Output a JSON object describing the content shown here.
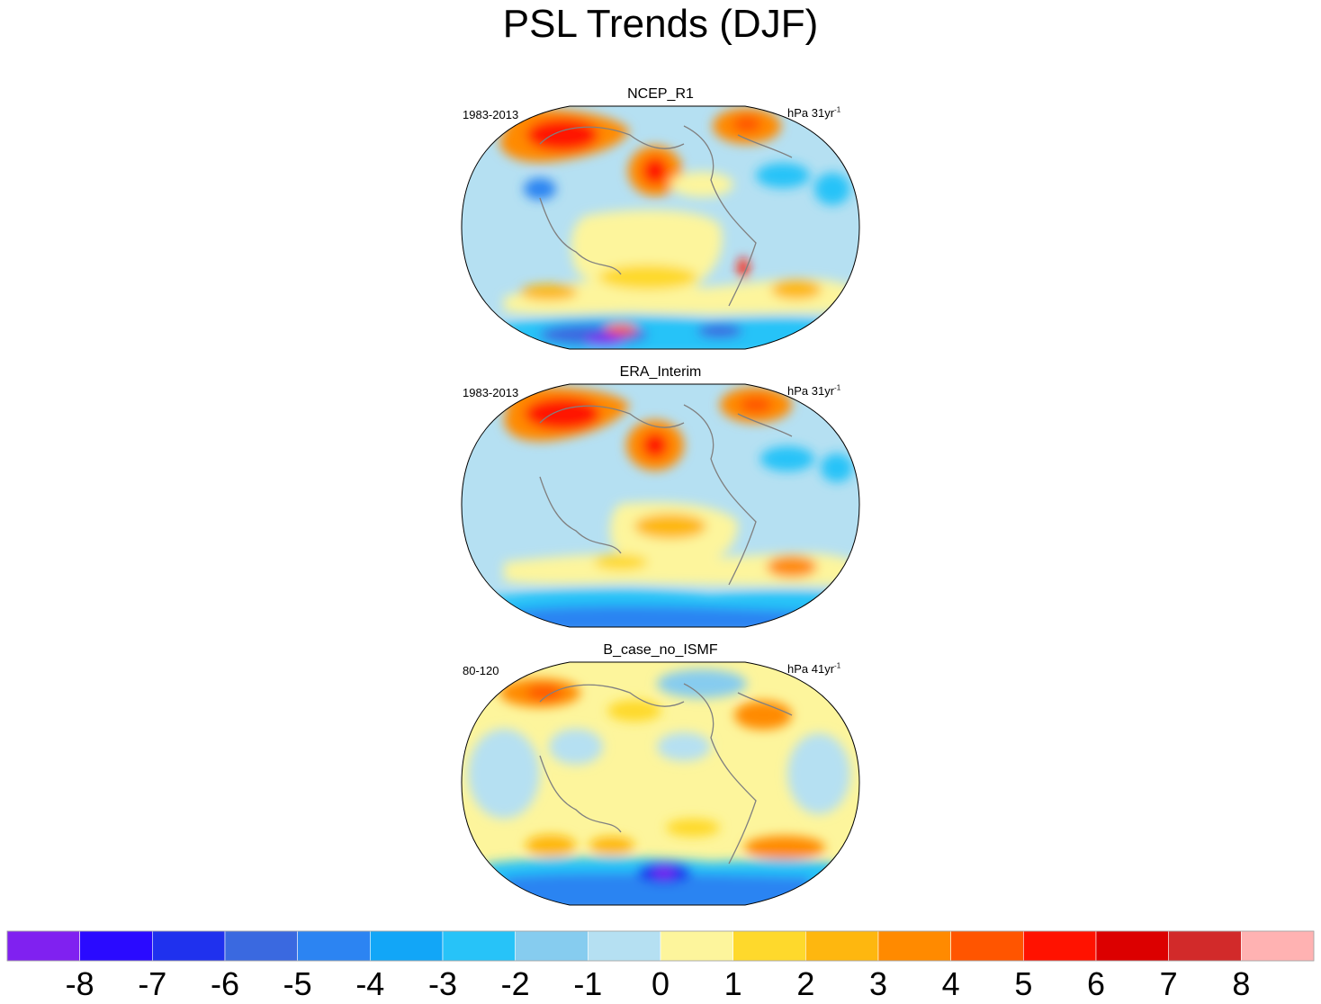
{
  "title": "PSL Trends (DJF)",
  "panels": [
    {
      "title": "NCEP_R1",
      "period": "1983-2013",
      "units_prefix": "hPa 31yr",
      "units_exp": "-1"
    },
    {
      "title": "ERA_Interim",
      "period": "1983-2013",
      "units_prefix": "hPa 31yr",
      "units_exp": "-1"
    },
    {
      "title": "B_case_no_ISMF",
      "period": "80-120",
      "units_prefix": "hPa 41yr",
      "units_exp": "-1"
    }
  ],
  "colorbar": {
    "labels": [
      "-8",
      "-7",
      "-6",
      "-5",
      "-4",
      "-3",
      "-2",
      "-1",
      "0",
      "1",
      "2",
      "3",
      "4",
      "5",
      "6",
      "7",
      "8"
    ],
    "colors": [
      "#8021f0",
      "#2a0aff",
      "#1f31ee",
      "#3a69e0",
      "#2c84f2",
      "#12a6f7",
      "#27c3f8",
      "#86ccef",
      "#b5e0f2",
      "#fdf59c",
      "#fed92c",
      "#feb70f",
      "#ff8a00",
      "#ff5500",
      "#ff1200",
      "#dc0000",
      "#d22a2a",
      "#ffb2b2"
    ]
  }
}
